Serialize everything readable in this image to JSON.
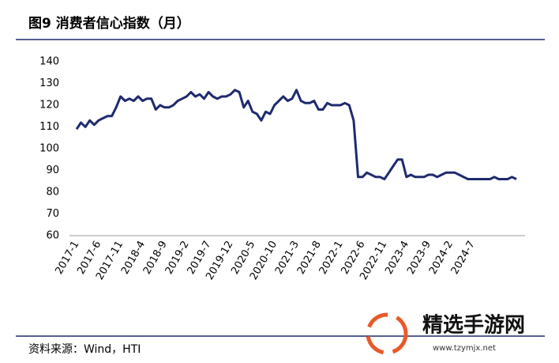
{
  "chart_data": {
    "type": "line",
    "title": "图9  消费者信心指数（月）",
    "source": "资料来源：Wind，HTI",
    "watermark": {
      "name": "精选手游网",
      "url": "www.tzymjx.net"
    },
    "categories": [
      "2017-1",
      null,
      null,
      null,
      null,
      "2017-6",
      null,
      null,
      null,
      null,
      "2017-11",
      null,
      null,
      null,
      null,
      "2018-4",
      null,
      null,
      null,
      null,
      "2018-9",
      null,
      null,
      null,
      null,
      "2019-2",
      null,
      null,
      null,
      null,
      "2019-7",
      null,
      null,
      null,
      null,
      "2019-12",
      null,
      null,
      null,
      null,
      "2020-5",
      null,
      null,
      null,
      null,
      "2020-10",
      null,
      null,
      null,
      null,
      "2021-3",
      null,
      null,
      null,
      null,
      "2021-8",
      null,
      null,
      null,
      null,
      "2022-1",
      null,
      null,
      null,
      null,
      "2022-6",
      null,
      null,
      null,
      null,
      "2022-11",
      null,
      null,
      null,
      null,
      "2023-4",
      null,
      null,
      null,
      null,
      "2023-9",
      null,
      null,
      null,
      null,
      "2024-2",
      null,
      null,
      null,
      null,
      "2024-7",
      null,
      null,
      null,
      null,
      null,
      null,
      null,
      null,
      null,
      null
    ],
    "series": [
      {
        "name": "消费者信心指数",
        "color": "#1f2a6e",
        "values": [
          109,
          112,
          110,
          113,
          111,
          113,
          114,
          115,
          115,
          119,
          124,
          122,
          123,
          122,
          124,
          122,
          123,
          123,
          118,
          120,
          119,
          119,
          120,
          122,
          123,
          124,
          126,
          124,
          125,
          123,
          126,
          124,
          123,
          124,
          124,
          125,
          127,
          126,
          119,
          122,
          117,
          116,
          113,
          117,
          116,
          120,
          122,
          124,
          122,
          123,
          127,
          122,
          121,
          121,
          122,
          118,
          118,
          121,
          120,
          120,
          120,
          121,
          120,
          113,
          87,
          87,
          89,
          88,
          87,
          87,
          86,
          89,
          92,
          95,
          95,
          87,
          88,
          87,
          87,
          87,
          88,
          88,
          87,
          88,
          89,
          89,
          89,
          88,
          87,
          86,
          86,
          86,
          86,
          86,
          86,
          87,
          86,
          86,
          86,
          87,
          86
        ]
      }
    ],
    "ylim": [
      60,
      140
    ],
    "yticks": [
      60,
      70,
      80,
      90,
      100,
      110,
      120,
      130,
      140
    ],
    "grid": false
  }
}
